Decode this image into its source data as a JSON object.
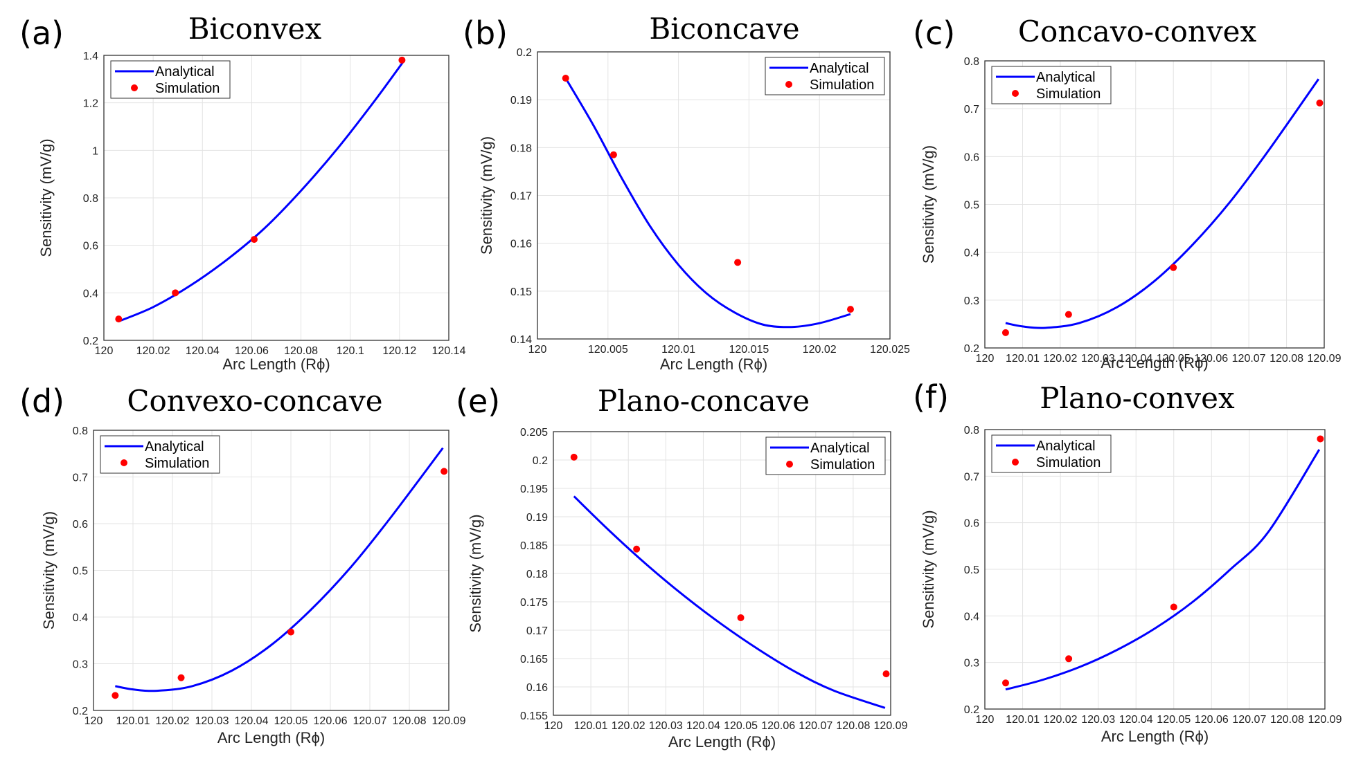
{
  "chart_data": [
    {
      "type": "line",
      "panel_label": "(a)",
      "title": "Biconvex",
      "xlabel": "Arc Length (Rϕ)",
      "ylabel": "Sensitivity (mV/g)",
      "xlim": [
        120,
        120.14
      ],
      "ylim": [
        0.2,
        1.4
      ],
      "xticks": [
        120,
        120.02,
        120.04,
        120.06,
        120.08,
        120.1,
        120.12,
        120.14
      ],
      "xtick_labels": [
        "120",
        "120.02",
        "120.04",
        "120.06",
        "120.08",
        "120.1",
        "120.12",
        "120.14"
      ],
      "yticks": [
        0.2,
        0.4,
        0.6,
        0.8,
        1.0,
        1.2,
        1.4
      ],
      "ytick_labels": [
        "0.2",
        "0.4",
        "0.6",
        "0.8",
        "1",
        "1.2",
        "1.4"
      ],
      "legend": [
        "Analytical",
        "Simulation"
      ],
      "legend_position": "top-left",
      "grid": true,
      "series": [
        {
          "name": "Analytical",
          "style": "line",
          "color": "#0000ff",
          "x": [
            120.006,
            120.02,
            120.035,
            120.05,
            120.065,
            120.08,
            120.095,
            120.11,
            120.122
          ],
          "y": [
            0.28,
            0.34,
            0.43,
            0.54,
            0.67,
            0.83,
            1.01,
            1.21,
            1.38
          ]
        },
        {
          "name": "Simulation",
          "style": "markers",
          "color": "#ff0000",
          "x": [
            120.006,
            120.029,
            120.061,
            120.121
          ],
          "y": [
            0.29,
            0.4,
            0.625,
            1.38
          ]
        }
      ]
    },
    {
      "type": "line",
      "panel_label": "(b)",
      "title": "Biconcave",
      "xlabel": "Arc Length (Rϕ)",
      "ylabel": "Sensitivity (mV/g)",
      "xlim": [
        120,
        120.025
      ],
      "ylim": [
        0.14,
        0.2
      ],
      "xticks": [
        120,
        120.005,
        120.01,
        120.015,
        120.02,
        120.025
      ],
      "xtick_labels": [
        "120",
        "120.005",
        "120.01",
        "120.015",
        "120.02",
        "120.025"
      ],
      "yticks": [
        0.14,
        0.15,
        0.16,
        0.17,
        0.18,
        0.19,
        0.2
      ],
      "ytick_labels": [
        "0.14",
        "0.15",
        "0.16",
        "0.17",
        "0.18",
        "0.19",
        "0.2"
      ],
      "legend": [
        "Analytical",
        "Simulation"
      ],
      "legend_position": "top-right",
      "grid": true,
      "series": [
        {
          "name": "Analytical",
          "style": "line",
          "color": "#0000ff",
          "x": [
            120.002,
            120.004,
            120.006,
            120.008,
            120.01,
            120.012,
            120.014,
            120.016,
            120.018,
            120.02,
            120.0222
          ],
          "y": [
            0.1945,
            0.1845,
            0.1735,
            0.1635,
            0.1555,
            0.1495,
            0.1455,
            0.143,
            0.1425,
            0.1433,
            0.1452
          ]
        },
        {
          "name": "Simulation",
          "style": "markers",
          "color": "#ff0000",
          "x": [
            120.002,
            120.0054,
            120.0142,
            120.0222
          ],
          "y": [
            0.1945,
            0.1785,
            0.156,
            0.1462
          ]
        }
      ]
    },
    {
      "type": "line",
      "panel_label": "(c)",
      "title": "Concavo-convex",
      "xlabel": "Arc Length (Rϕ)",
      "ylabel": "Sensitivity (mV/g)",
      "xlim": [
        120,
        120.09
      ],
      "ylim": [
        0.2,
        0.8
      ],
      "xticks": [
        120,
        120.01,
        120.02,
        120.03,
        120.04,
        120.05,
        120.06,
        120.07,
        120.08,
        120.09
      ],
      "xtick_labels": [
        "120",
        "120.01",
        "120.02",
        "120.03",
        "120.04",
        "120.05",
        "120.06",
        "120.07",
        "120.08",
        "120.09"
      ],
      "yticks": [
        0.2,
        0.3,
        0.4,
        0.5,
        0.6,
        0.7,
        0.8
      ],
      "ytick_labels": [
        "0.2",
        "0.3",
        "0.4",
        "0.5",
        "0.6",
        "0.7",
        "0.8"
      ],
      "legend": [
        "Analytical",
        "Simulation"
      ],
      "legend_position": "top-left",
      "grid": true,
      "series": [
        {
          "name": "Analytical",
          "style": "line",
          "color": "#0000ff",
          "x": [
            120.0055,
            120.01,
            120.016,
            120.025,
            120.035,
            120.045,
            120.055,
            120.065,
            120.075,
            120.0885
          ],
          "y": [
            0.252,
            0.245,
            0.242,
            0.252,
            0.285,
            0.34,
            0.415,
            0.505,
            0.61,
            0.762
          ]
        },
        {
          "name": "Simulation",
          "style": "markers",
          "color": "#ff0000",
          "x": [
            120.0055,
            120.0222,
            120.05,
            120.0888
          ],
          "y": [
            0.232,
            0.27,
            0.368,
            0.712
          ]
        }
      ]
    },
    {
      "type": "line",
      "panel_label": "(d)",
      "title": "Convexo-concave",
      "xlabel": "Arc Length (Rϕ)",
      "ylabel": "Sensitivity (mV/g)",
      "xlim": [
        120,
        120.09
      ],
      "ylim": [
        0.2,
        0.8
      ],
      "xticks": [
        120,
        120.01,
        120.02,
        120.03,
        120.04,
        120.05,
        120.06,
        120.07,
        120.08,
        120.09
      ],
      "xtick_labels": [
        "120",
        "120.01",
        "120.02",
        "120.03",
        "120.04",
        "120.05",
        "120.06",
        "120.07",
        "120.08",
        "120.09"
      ],
      "yticks": [
        0.2,
        0.3,
        0.4,
        0.5,
        0.6,
        0.7,
        0.8
      ],
      "ytick_labels": [
        "0.2",
        "0.3",
        "0.4",
        "0.5",
        "0.6",
        "0.7",
        "0.8"
      ],
      "legend": [
        "Analytical",
        "Simulation"
      ],
      "legend_position": "top-left",
      "grid": true,
      "series": [
        {
          "name": "Analytical",
          "style": "line",
          "color": "#0000ff",
          "x": [
            120.0055,
            120.01,
            120.016,
            120.025,
            120.035,
            120.045,
            120.055,
            120.065,
            120.075,
            120.0885
          ],
          "y": [
            0.252,
            0.245,
            0.242,
            0.252,
            0.285,
            0.34,
            0.415,
            0.505,
            0.61,
            0.762
          ]
        },
        {
          "name": "Simulation",
          "style": "markers",
          "color": "#ff0000",
          "x": [
            120.0055,
            120.0222,
            120.05,
            120.0888
          ],
          "y": [
            0.232,
            0.27,
            0.368,
            0.712
          ]
        }
      ]
    },
    {
      "type": "line",
      "panel_label": "(e)",
      "title": "Plano-concave",
      "xlabel": "Arc Length (Rϕ)",
      "ylabel": "Sensitivity (mV/g)",
      "xlim": [
        120,
        120.09
      ],
      "ylim": [
        0.155,
        0.205
      ],
      "xticks": [
        120,
        120.01,
        120.02,
        120.03,
        120.04,
        120.05,
        120.06,
        120.07,
        120.08,
        120.09
      ],
      "xtick_labels": [
        "120",
        "120.01",
        "120.02",
        "120.03",
        "120.04",
        "120.05",
        "120.06",
        "120.07",
        "120.08",
        "120.09"
      ],
      "yticks": [
        0.155,
        0.16,
        0.165,
        0.17,
        0.175,
        0.18,
        0.185,
        0.19,
        0.195,
        0.2,
        0.205
      ],
      "ytick_labels": [
        "0.155",
        "0.16",
        "0.165",
        "0.17",
        "0.175",
        "0.18",
        "0.185",
        "0.19",
        "0.195",
        "0.2",
        "0.205"
      ],
      "legend": [
        "Analytical",
        "Simulation"
      ],
      "legend_position": "top-right",
      "grid": true,
      "series": [
        {
          "name": "Analytical",
          "style": "line",
          "color": "#0000ff",
          "x": [
            120.0055,
            120.015,
            120.025,
            120.035,
            120.045,
            120.055,
            120.065,
            120.075,
            120.0885
          ],
          "y": [
            0.1936,
            0.1875,
            0.1815,
            0.176,
            0.171,
            0.1665,
            0.1625,
            0.1593,
            0.1563
          ]
        },
        {
          "name": "Simulation",
          "style": "markers",
          "color": "#ff0000",
          "x": [
            120.0055,
            120.0222,
            120.05,
            120.0888
          ],
          "y": [
            0.2005,
            0.1843,
            0.1722,
            0.1623
          ]
        }
      ]
    },
    {
      "type": "line",
      "panel_label": "(f)",
      "title": "Plano-convex",
      "xlabel": "Arc Length (Rϕ)",
      "ylabel": "Sensitivity (mV/g)",
      "xlim": [
        120,
        120.09
      ],
      "ylim": [
        0.2,
        0.8
      ],
      "xticks": [
        120,
        120.01,
        120.02,
        120.03,
        120.04,
        120.05,
        120.06,
        120.07,
        120.08,
        120.09
      ],
      "xtick_labels": [
        "120",
        "120.01",
        "120.02",
        "120.03",
        "120.04",
        "120.05",
        "120.06",
        "120.07",
        "120.08",
        "120.09"
      ],
      "yticks": [
        0.2,
        0.3,
        0.4,
        0.5,
        0.6,
        0.7,
        0.8
      ],
      "ytick_labels": [
        "0.2",
        "0.3",
        "0.4",
        "0.5",
        "0.6",
        "0.7",
        "0.8"
      ],
      "legend": [
        "Analytical",
        "Simulation"
      ],
      "legend_position": "top-left",
      "grid": true,
      "series": [
        {
          "name": "Analytical",
          "style": "line",
          "color": "#0000ff",
          "x": [
            120.0055,
            120.015,
            120.025,
            120.035,
            120.045,
            120.055,
            120.065,
            120.075,
            120.0885
          ],
          "y": [
            0.242,
            0.262,
            0.29,
            0.327,
            0.373,
            0.43,
            0.5,
            0.58,
            0.757
          ]
        },
        {
          "name": "Simulation",
          "style": "markers",
          "color": "#ff0000",
          "x": [
            120.0055,
            120.0222,
            120.05,
            120.0888
          ],
          "y": [
            0.256,
            0.308,
            0.419,
            0.78
          ]
        }
      ]
    }
  ]
}
